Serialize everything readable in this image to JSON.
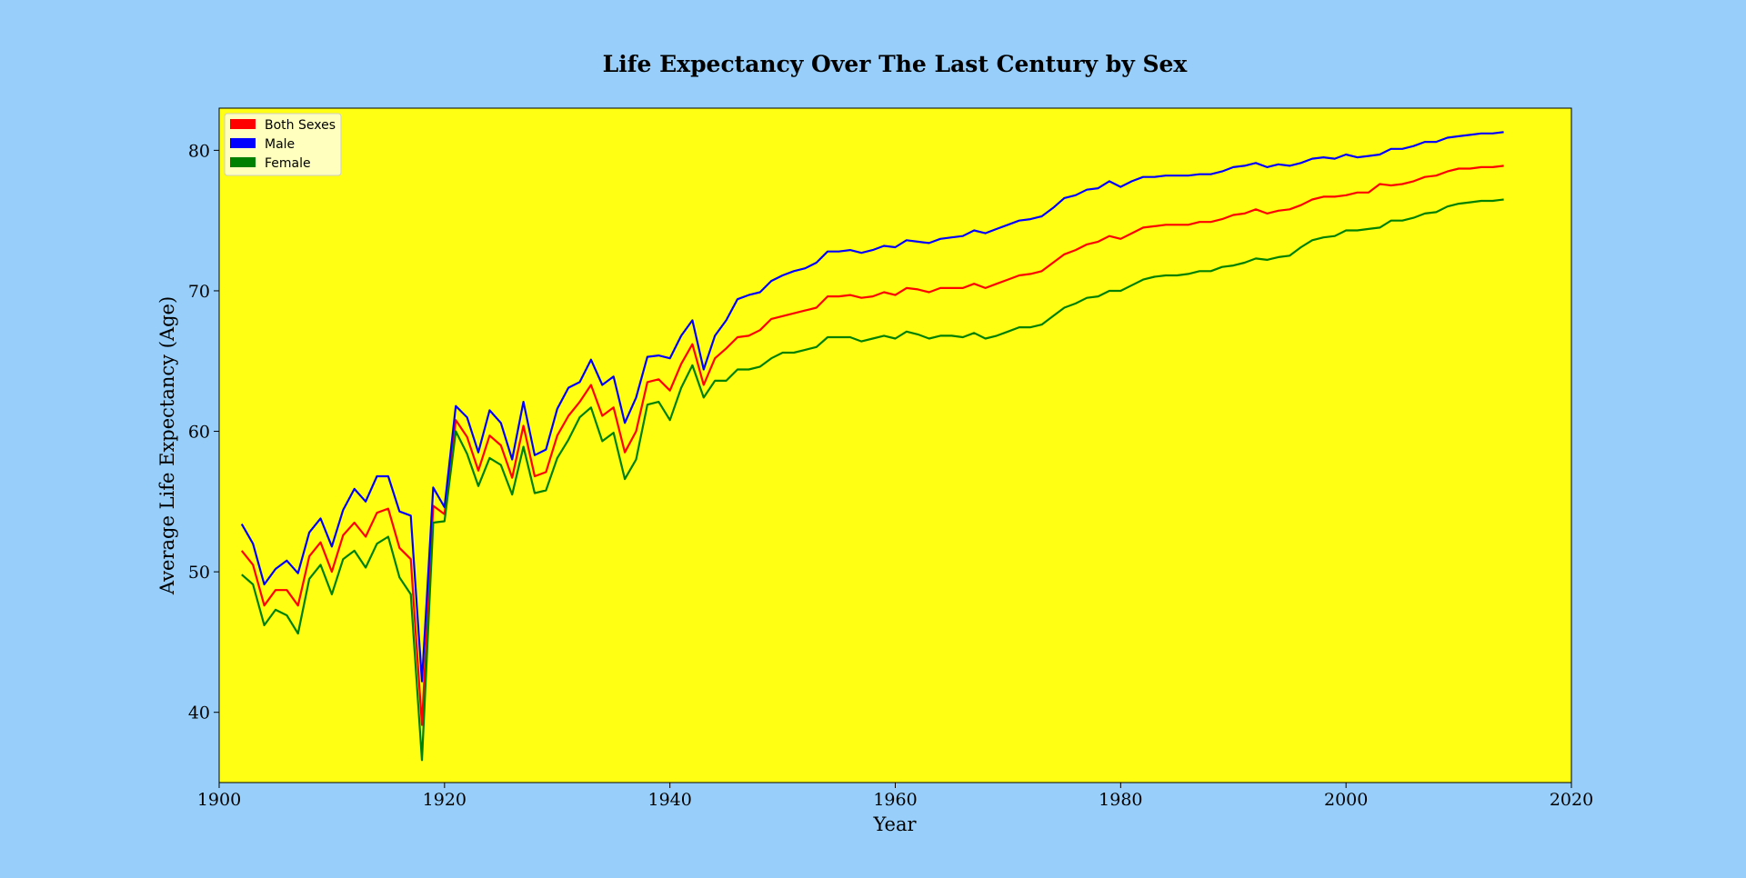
{
  "chart_data": {
    "type": "line",
    "title": "Life Expectancy Over The Last Century by Sex",
    "xlabel": "Year",
    "ylabel": "Average Life Expectancy (Age)",
    "xlim": [
      1900,
      2020
    ],
    "ylim": [
      35,
      83
    ],
    "xticks": [
      1900,
      1920,
      1940,
      1960,
      1980,
      2000,
      2020
    ],
    "yticks": [
      40,
      50,
      60,
      70,
      80
    ],
    "grid": false,
    "legend_position": "top-left",
    "plot_background": "#ffff14",
    "page_background": "#97cffa",
    "x": [
      1902,
      1903,
      1904,
      1905,
      1906,
      1907,
      1908,
      1909,
      1910,
      1911,
      1912,
      1913,
      1914,
      1915,
      1916,
      1917,
      1918,
      1919,
      1920,
      1921,
      1922,
      1923,
      1924,
      1925,
      1926,
      1927,
      1928,
      1929,
      1930,
      1931,
      1932,
      1933,
      1934,
      1935,
      1936,
      1937,
      1938,
      1939,
      1940,
      1941,
      1942,
      1943,
      1944,
      1945,
      1946,
      1947,
      1948,
      1949,
      1950,
      1951,
      1952,
      1953,
      1954,
      1955,
      1956,
      1957,
      1958,
      1959,
      1960,
      1961,
      1962,
      1963,
      1964,
      1965,
      1966,
      1967,
      1968,
      1969,
      1970,
      1971,
      1972,
      1973,
      1974,
      1975,
      1976,
      1977,
      1978,
      1979,
      1980,
      1981,
      1982,
      1983,
      1984,
      1985,
      1986,
      1987,
      1988,
      1989,
      1990,
      1991,
      1992,
      1993,
      1994,
      1995,
      1996,
      1997,
      1998,
      1999,
      2000,
      2001,
      2002,
      2003,
      2004,
      2005,
      2006,
      2007,
      2008,
      2009,
      2010,
      2011,
      2012,
      2013,
      2014
    ],
    "series": [
      {
        "name": "Both Sexes",
        "color": "#ff0000",
        "values": [
          51.5,
          50.5,
          47.6,
          48.7,
          48.7,
          47.6,
          51.1,
          52.1,
          50.0,
          52.6,
          53.5,
          52.5,
          54.2,
          54.5,
          51.7,
          50.9,
          39.1,
          54.7,
          54.1,
          60.8,
          59.6,
          57.2,
          59.7,
          59.0,
          56.7,
          60.4,
          56.8,
          57.1,
          59.7,
          61.1,
          62.1,
          63.3,
          61.1,
          61.7,
          58.5,
          60.0,
          63.5,
          63.7,
          62.9,
          64.8,
          66.2,
          63.3,
          65.2,
          65.9,
          66.7,
          66.8,
          67.2,
          68.0,
          68.2,
          68.4,
          68.6,
          68.8,
          69.6,
          69.6,
          69.7,
          69.5,
          69.6,
          69.9,
          69.7,
          70.2,
          70.1,
          69.9,
          70.2,
          70.2,
          70.2,
          70.5,
          70.2,
          70.5,
          70.8,
          71.1,
          71.2,
          71.4,
          72.0,
          72.6,
          72.9,
          73.3,
          73.5,
          73.9,
          73.7,
          74.1,
          74.5,
          74.6,
          74.7,
          74.7,
          74.7,
          74.9,
          74.9,
          75.1,
          75.4,
          75.5,
          75.8,
          75.5,
          75.7,
          75.8,
          76.1,
          76.5,
          76.7,
          76.7,
          76.8,
          77.0,
          77.0,
          77.6,
          77.5,
          77.6,
          77.8,
          78.1,
          78.2,
          78.5,
          78.7,
          78.7,
          78.8,
          78.8,
          78.9
        ]
      },
      {
        "name": "Male",
        "color": "#0000ff",
        "values": [
          53.4,
          52.0,
          49.1,
          50.2,
          50.8,
          49.9,
          52.8,
          53.8,
          51.8,
          54.4,
          55.9,
          55.0,
          56.8,
          56.8,
          54.3,
          54.0,
          42.2,
          56.0,
          54.6,
          61.8,
          61.0,
          58.5,
          61.5,
          60.6,
          58.0,
          62.1,
          58.3,
          58.7,
          61.6,
          63.1,
          63.5,
          65.1,
          63.3,
          63.9,
          60.6,
          62.4,
          65.3,
          65.4,
          65.2,
          66.8,
          67.9,
          64.4,
          66.8,
          67.9,
          69.4,
          69.7,
          69.9,
          70.7,
          71.1,
          71.4,
          71.6,
          72.0,
          72.8,
          72.8,
          72.9,
          72.7,
          72.9,
          73.2,
          73.1,
          73.6,
          73.5,
          73.4,
          73.7,
          73.8,
          73.9,
          74.3,
          74.1,
          74.4,
          74.7,
          75.0,
          75.1,
          75.3,
          75.9,
          76.6,
          76.8,
          77.2,
          77.3,
          77.8,
          77.4,
          77.8,
          78.1,
          78.1,
          78.2,
          78.2,
          78.2,
          78.3,
          78.3,
          78.5,
          78.8,
          78.9,
          79.1,
          78.8,
          79.0,
          78.9,
          79.1,
          79.4,
          79.5,
          79.4,
          79.7,
          79.5,
          79.6,
          79.7,
          80.1,
          80.1,
          80.3,
          80.6,
          80.6,
          80.9,
          81.0,
          81.1,
          81.2,
          81.2,
          81.3
        ]
      },
      {
        "name": "Female",
        "color": "#008000",
        "values": [
          49.8,
          49.1,
          46.2,
          47.3,
          46.9,
          45.6,
          49.5,
          50.5,
          48.4,
          50.9,
          51.5,
          50.3,
          52.0,
          52.5,
          49.6,
          48.4,
          36.6,
          53.5,
          53.6,
          60.0,
          58.4,
          56.1,
          58.1,
          57.6,
          55.5,
          58.9,
          55.6,
          55.8,
          58.1,
          59.4,
          61.0,
          61.7,
          59.3,
          59.9,
          56.6,
          58.0,
          61.9,
          62.1,
          60.8,
          63.1,
          64.7,
          62.4,
          63.6,
          63.6,
          64.4,
          64.4,
          64.6,
          65.2,
          65.6,
          65.6,
          65.8,
          66.0,
          66.7,
          66.7,
          66.7,
          66.4,
          66.6,
          66.8,
          66.6,
          67.1,
          66.9,
          66.6,
          66.8,
          66.8,
          66.7,
          67.0,
          66.6,
          66.8,
          67.1,
          67.4,
          67.4,
          67.6,
          68.2,
          68.8,
          69.1,
          69.5,
          69.6,
          70.0,
          70.0,
          70.4,
          70.8,
          71.0,
          71.1,
          71.1,
          71.2,
          71.4,
          71.4,
          71.7,
          71.8,
          72.0,
          72.3,
          72.2,
          72.4,
          72.5,
          73.1,
          73.6,
          73.8,
          73.9,
          74.3,
          74.3,
          74.4,
          74.5,
          75.0,
          75.0,
          75.2,
          75.5,
          75.6,
          76.0,
          76.2,
          76.3,
          76.4,
          76.4,
          76.5
        ]
      }
    ]
  }
}
